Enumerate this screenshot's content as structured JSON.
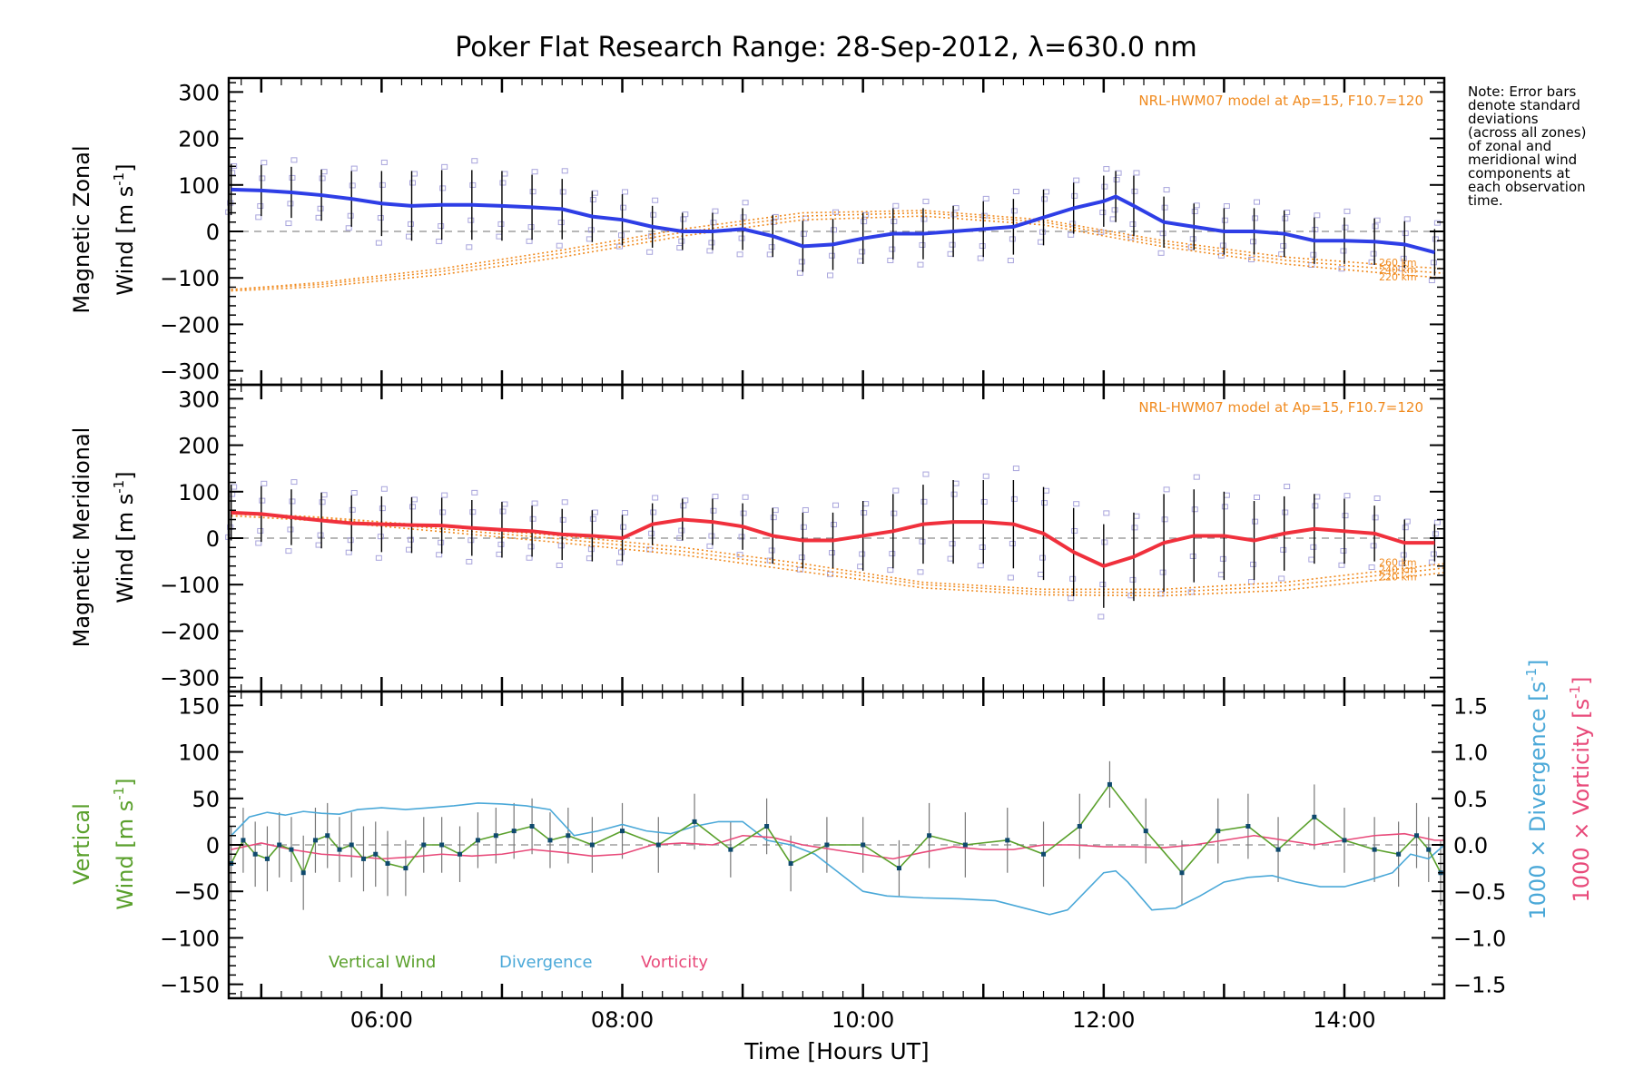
{
  "title": "Poker Flat Research Range: 28-Sep-2012, λ=630.0 nm",
  "note": [
    "Note: Error bars",
    "denote standard",
    "deviations",
    "(across all zones)",
    "of zonal and",
    "meridional wind",
    "components at",
    "each observation",
    "time."
  ],
  "colors": {
    "zonal": "#2e3ee6",
    "meridional": "#f0303c",
    "model": "#f08a1e",
    "vertical": "#5aa02c",
    "divergence": "#4aa8d8",
    "vorticity": "#e84a7a",
    "zone_points": "#a8a4dc",
    "errorbar": "#000000",
    "zero_line": "#8c8c8c"
  },
  "x_axis": {
    "label": "Time [Hours UT]",
    "tick_labels": [
      "06:00",
      "08:00",
      "10:00",
      "12:00",
      "14:00"
    ],
    "tick_values": [
      6,
      8,
      10,
      12,
      14
    ],
    "range": [
      4.73,
      14.83
    ]
  },
  "chart_data": [
    {
      "type": "line",
      "panel": "zonal",
      "ylabel_line1": "Magnetic Zonal",
      "ylabel_line2_prefix": "Wind ",
      "ylabel_unit": "[m s",
      "ylabel_unit_exp": "-1",
      "ylabel_unit_close": "]",
      "ylim": [
        -330,
        330
      ],
      "yticks": [
        -300,
        -200,
        -100,
        0,
        100,
        200,
        300
      ],
      "ytick_labels": [
        "−300",
        "−200",
        "−100",
        "0",
        "100",
        "200",
        "300"
      ],
      "model_label": "NRL-HWM07 model at Ap=15, F10.7=120",
      "altitude_labels": [
        "260 km",
        "240 km",
        "220 km"
      ],
      "series": [
        {
          "role": "mean",
          "x": [
            4.75,
            5.0,
            5.25,
            5.5,
            5.75,
            6.0,
            6.25,
            6.5,
            6.75,
            7.0,
            7.25,
            7.5,
            7.75,
            8.0,
            8.25,
            8.5,
            8.75,
            9.0,
            9.25,
            9.5,
            9.75,
            10.0,
            10.25,
            10.5,
            10.75,
            11.0,
            11.25,
            11.5,
            11.75,
            12.0,
            12.1,
            12.25,
            12.5,
            12.75,
            13.0,
            13.25,
            13.5,
            13.75,
            14.0,
            14.25,
            14.5,
            14.75
          ],
          "y": [
            90,
            88,
            84,
            78,
            70,
            60,
            55,
            57,
            57,
            55,
            52,
            48,
            32,
            25,
            10,
            0,
            0,
            5,
            -10,
            -32,
            -28,
            -15,
            -5,
            -5,
            0,
            5,
            10,
            30,
            50,
            65,
            75,
            55,
            20,
            10,
            0,
            0,
            -5,
            -20,
            -20,
            -22,
            -28,
            -45
          ],
          "err": [
            55,
            55,
            55,
            55,
            60,
            70,
            75,
            75,
            75,
            75,
            70,
            65,
            55,
            55,
            45,
            40,
            40,
            45,
            45,
            55,
            55,
            55,
            55,
            55,
            55,
            60,
            60,
            60,
            55,
            55,
            55,
            65,
            55,
            50,
            50,
            50,
            50,
            50,
            50,
            50,
            50,
            50
          ]
        },
        {
          "role": "model",
          "name": "260 km",
          "x": [
            4.75,
            5.5,
            6.5,
            7.5,
            8.5,
            9.5,
            10.5,
            11.5,
            12.5,
            13.5,
            14.5,
            14.83
          ],
          "y": [
            -125,
            -110,
            -80,
            -40,
            5,
            40,
            45,
            25,
            -20,
            -55,
            -75,
            -80
          ]
        },
        {
          "role": "model",
          "name": "240 km",
          "x": [
            4.75,
            5.5,
            6.5,
            7.5,
            8.5,
            9.5,
            10.5,
            11.5,
            12.5,
            13.5,
            14.5,
            14.83
          ],
          "y": [
            -125,
            -114,
            -86,
            -47,
            -2,
            33,
            40,
            20,
            -26,
            -62,
            -84,
            -90
          ]
        },
        {
          "role": "model",
          "name": "220 km",
          "x": [
            4.75,
            5.5,
            6.5,
            7.5,
            8.5,
            9.5,
            10.5,
            11.5,
            12.5,
            13.5,
            14.5,
            14.83
          ],
          "y": [
            -128,
            -119,
            -93,
            -55,
            -10,
            25,
            33,
            14,
            -33,
            -70,
            -94,
            -100
          ]
        }
      ]
    },
    {
      "type": "line",
      "panel": "meridional",
      "ylabel_line1": "Magnetic Meridional",
      "ylabel_line2_prefix": "Wind ",
      "ylabel_unit": "[m s",
      "ylabel_unit_exp": "-1",
      "ylabel_unit_close": "]",
      "ylim": [
        -330,
        330
      ],
      "yticks": [
        -300,
        -200,
        -100,
        0,
        100,
        200,
        300
      ],
      "ytick_labels": [
        "−300",
        "−200",
        "−100",
        "0",
        "100",
        "200",
        "300"
      ],
      "model_label": "NRL-HWM07 model at Ap=15, F10.7=120",
      "altitude_labels": [
        "260 km",
        "240 km",
        "220 km"
      ],
      "series": [
        {
          "role": "mean",
          "x": [
            4.75,
            5.0,
            5.25,
            5.5,
            5.75,
            6.0,
            6.25,
            6.5,
            6.75,
            7.0,
            7.25,
            7.5,
            7.75,
            8.0,
            8.25,
            8.5,
            8.75,
            9.0,
            9.25,
            9.5,
            9.75,
            10.0,
            10.25,
            10.5,
            10.75,
            11.0,
            11.25,
            11.5,
            11.75,
            12.0,
            12.25,
            12.5,
            12.75,
            13.0,
            13.25,
            13.5,
            13.75,
            14.0,
            14.25,
            14.5,
            14.75
          ],
          "y": [
            55,
            52,
            45,
            38,
            32,
            30,
            28,
            27,
            22,
            18,
            15,
            8,
            5,
            0,
            30,
            40,
            35,
            25,
            5,
            -5,
            -5,
            5,
            15,
            30,
            35,
            35,
            30,
            10,
            -30,
            -60,
            -40,
            -10,
            5,
            5,
            -5,
            10,
            20,
            15,
            10,
            -10,
            -10
          ],
          "err": [
            60,
            60,
            60,
            60,
            60,
            60,
            60,
            60,
            60,
            60,
            55,
            55,
            55,
            50,
            45,
            45,
            50,
            50,
            60,
            60,
            60,
            75,
            80,
            85,
            90,
            90,
            95,
            100,
            95,
            90,
            95,
            105,
            100,
            95,
            85,
            80,
            75,
            70,
            60,
            50,
            40
          ]
        },
        {
          "role": "model",
          "name": "260 km",
          "x": [
            4.75,
            5.5,
            6.5,
            7.5,
            8.5,
            9.5,
            10.5,
            11.5,
            12.5,
            13.5,
            14.5,
            14.83
          ],
          "y": [
            55,
            45,
            25,
            5,
            -20,
            -55,
            -95,
            -110,
            -110,
            -95,
            -65,
            -55
          ]
        },
        {
          "role": "model",
          "name": "240 km",
          "x": [
            4.75,
            5.5,
            6.5,
            7.5,
            8.5,
            9.5,
            10.5,
            11.5,
            12.5,
            13.5,
            14.5,
            14.83
          ],
          "y": [
            52,
            42,
            20,
            -2,
            -28,
            -63,
            -100,
            -116,
            -117,
            -103,
            -74,
            -64
          ]
        },
        {
          "role": "model",
          "name": "220 km",
          "x": [
            4.75,
            5.5,
            6.5,
            7.5,
            8.5,
            9.5,
            10.5,
            11.5,
            12.5,
            13.5,
            14.5,
            14.83
          ],
          "y": [
            48,
            37,
            14,
            -10,
            -36,
            -72,
            -107,
            -122,
            -124,
            -112,
            -84,
            -74
          ]
        }
      ]
    },
    {
      "type": "line",
      "panel": "vertical",
      "ylabel_line1": "Vertical",
      "ylabel_line2_prefix": "Wind ",
      "ylabel_unit": "[m s",
      "ylabel_unit_exp": "-1",
      "ylabel_unit_close": "]",
      "ylim": [
        -165,
        165
      ],
      "yticks": [
        -150,
        -100,
        -50,
        0,
        50,
        100,
        150
      ],
      "ytick_labels": [
        "−150",
        "−100",
        "−50",
        "0",
        "50",
        "100",
        "150"
      ],
      "y2lim": [
        -1.65,
        1.65
      ],
      "y2ticks": [
        -1.5,
        -1.0,
        -0.5,
        0.0,
        0.5,
        1.0,
        1.5
      ],
      "y2tick_labels": [
        "−1.5",
        "−1.0",
        "−0.5",
        "0.0",
        "0.5",
        "1.0",
        "1.5"
      ],
      "y2label_div": "1000 × Divergence [s",
      "y2label_vor": "1000 × Vorticity [s",
      "y2label_exp": "-1",
      "y2label_close": "]",
      "legend": [
        "Vertical Wind",
        "Divergence",
        "Vorticity"
      ],
      "series": [
        {
          "role": "vertical",
          "name": "Vertical Wind",
          "x": [
            4.75,
            4.85,
            4.95,
            5.05,
            5.15,
            5.25,
            5.35,
            5.45,
            5.55,
            5.65,
            5.75,
            5.85,
            5.95,
            6.05,
            6.2,
            6.35,
            6.5,
            6.65,
            6.8,
            6.95,
            7.1,
            7.25,
            7.4,
            7.55,
            7.75,
            8.0,
            8.3,
            8.6,
            8.9,
            9.2,
            9.4,
            9.7,
            10.0,
            10.3,
            10.55,
            10.85,
            11.2,
            11.5,
            11.8,
            12.05,
            12.35,
            12.65,
            12.95,
            13.2,
            13.45,
            13.75,
            14.0,
            14.25,
            14.45,
            14.6,
            14.7,
            14.8
          ],
          "y": [
            -20,
            5,
            -10,
            -15,
            0,
            -5,
            -30,
            5,
            10,
            -5,
            0,
            -15,
            -10,
            -20,
            -25,
            0,
            0,
            -10,
            5,
            10,
            15,
            20,
            5,
            10,
            0,
            15,
            0,
            25,
            -5,
            20,
            -20,
            0,
            0,
            -25,
            10,
            0,
            5,
            -10,
            20,
            65,
            15,
            -30,
            15,
            20,
            -5,
            30,
            5,
            -5,
            -10,
            10,
            -5,
            -30
          ],
          "err": [
            40,
            35,
            35,
            35,
            35,
            35,
            40,
            35,
            35,
            35,
            35,
            35,
            35,
            35,
            30,
            30,
            30,
            30,
            30,
            30,
            30,
            30,
            30,
            30,
            30,
            30,
            30,
            30,
            30,
            30,
            30,
            30,
            30,
            30,
            35,
            35,
            35,
            35,
            35,
            25,
            35,
            35,
            35,
            35,
            35,
            35,
            35,
            35,
            35,
            35,
            35,
            35
          ]
        },
        {
          "role": "divergence",
          "name": "Divergence",
          "x": [
            4.75,
            4.9,
            5.05,
            5.2,
            5.35,
            5.5,
            5.65,
            5.8,
            6.0,
            6.2,
            6.4,
            6.6,
            6.8,
            7.0,
            7.2,
            7.4,
            7.6,
            7.8,
            8.0,
            8.2,
            8.4,
            8.6,
            8.8,
            9.0,
            9.2,
            9.4,
            9.6,
            9.8,
            10.0,
            10.2,
            10.5,
            10.8,
            11.1,
            11.4,
            11.55,
            11.7,
            11.85,
            12.0,
            12.1,
            12.2,
            12.4,
            12.6,
            12.8,
            13.0,
            13.2,
            13.4,
            13.6,
            13.8,
            14.0,
            14.2,
            14.4,
            14.55,
            14.7,
            14.83
          ],
          "y": [
            0.1,
            0.3,
            0.35,
            0.32,
            0.36,
            0.34,
            0.33,
            0.38,
            0.4,
            0.38,
            0.4,
            0.42,
            0.45,
            0.44,
            0.42,
            0.38,
            0.1,
            0.15,
            0.22,
            0.15,
            0.12,
            0.2,
            0.25,
            0.25,
            0.05,
            0.0,
            -0.1,
            -0.3,
            -0.5,
            -0.55,
            -0.57,
            -0.58,
            -0.6,
            -0.7,
            -0.75,
            -0.7,
            -0.5,
            -0.3,
            -0.28,
            -0.4,
            -0.7,
            -0.68,
            -0.55,
            -0.4,
            -0.35,
            -0.33,
            -0.4,
            -0.45,
            -0.45,
            -0.38,
            -0.3,
            -0.1,
            -0.15,
            0.0
          ]
        },
        {
          "role": "vorticity",
          "name": "Vorticity",
          "x": [
            4.75,
            5.0,
            5.25,
            5.5,
            5.75,
            6.0,
            6.25,
            6.5,
            6.75,
            7.0,
            7.25,
            7.5,
            7.75,
            8.0,
            8.25,
            8.5,
            8.75,
            9.0,
            9.25,
            9.5,
            9.75,
            10.0,
            10.25,
            10.5,
            10.75,
            11.0,
            11.25,
            11.5,
            11.75,
            12.0,
            12.25,
            12.5,
            12.75,
            13.0,
            13.25,
            13.5,
            13.75,
            14.0,
            14.25,
            14.5,
            14.75,
            14.83
          ],
          "y": [
            -0.05,
            0.02,
            -0.05,
            -0.1,
            -0.12,
            -0.15,
            -0.13,
            -0.1,
            -0.12,
            -0.1,
            -0.05,
            -0.08,
            -0.12,
            -0.1,
            0.0,
            0.02,
            0.0,
            0.1,
            0.08,
            0.0,
            -0.05,
            -0.1,
            -0.15,
            -0.08,
            -0.02,
            -0.05,
            -0.05,
            0.0,
            0.0,
            -0.02,
            -0.02,
            -0.03,
            0.0,
            0.05,
            0.1,
            0.05,
            0.0,
            0.05,
            0.1,
            0.12,
            0.05,
            0.05
          ]
        }
      ]
    }
  ]
}
